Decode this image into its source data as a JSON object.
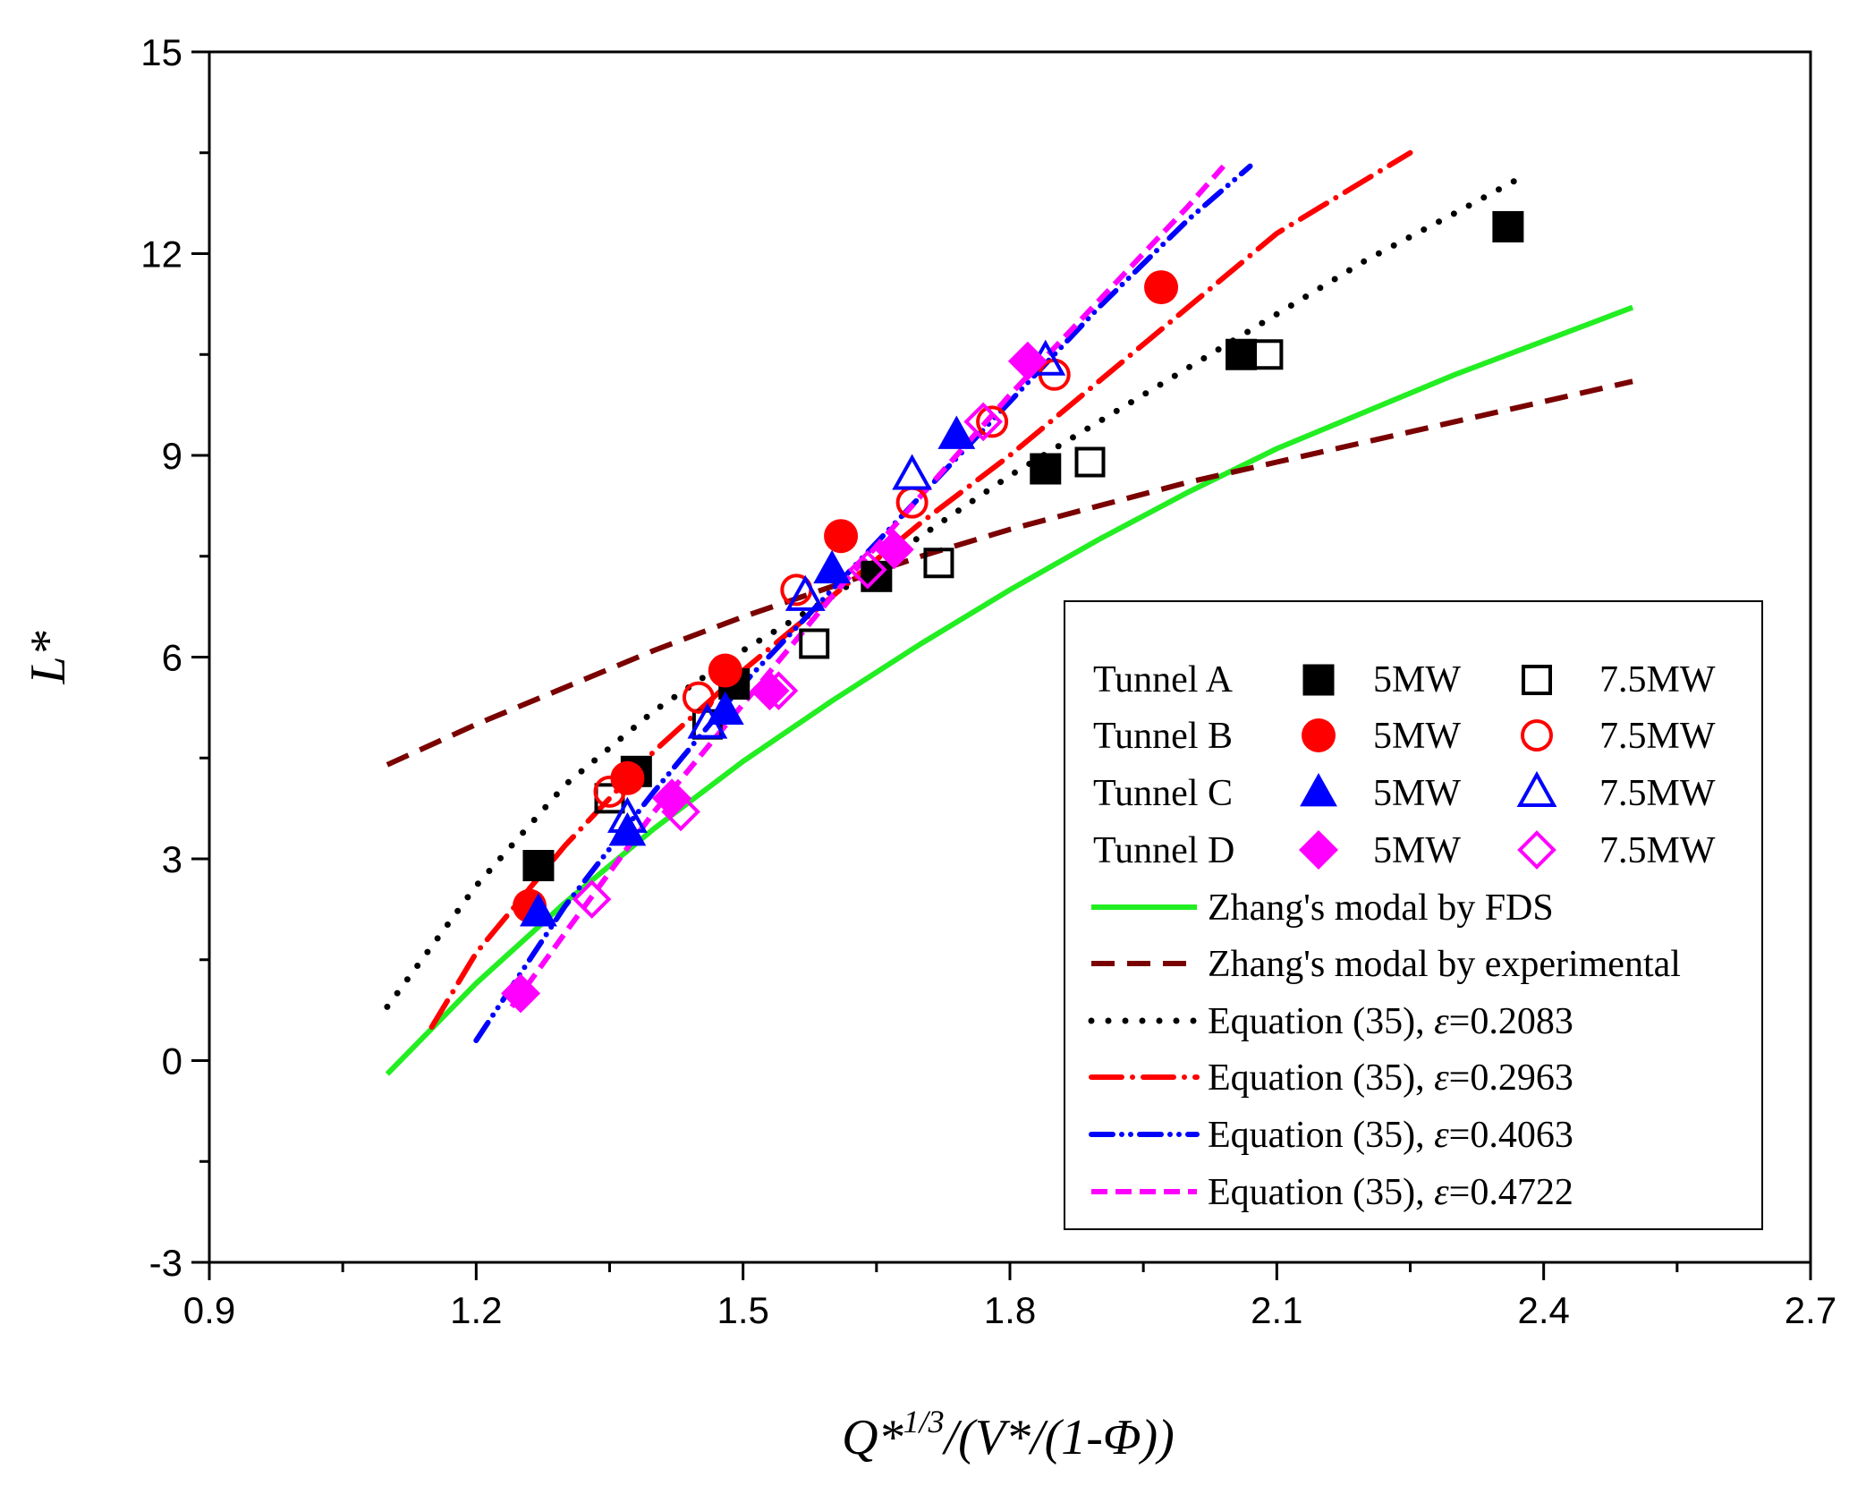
{
  "chart_data": {
    "type": "scatter",
    "title": "",
    "xlabel_parts": [
      "Q*",
      "1/3",
      "/(V*/(1-Φ))"
    ],
    "ylabel": "L*",
    "xlim": [
      0.9,
      2.7
    ],
    "ylim": [
      -3,
      15
    ],
    "x_ticks": [
      0.9,
      1.2,
      1.5,
      1.8,
      2.1,
      2.4,
      2.7
    ],
    "x_tick_labels": [
      "0.9",
      "1.2",
      "1.5",
      "1.8",
      "2.1",
      "2.4",
      "2.7"
    ],
    "y_ticks": [
      -3,
      0,
      3,
      6,
      9,
      12,
      15
    ],
    "y_tick_labels": [
      "-3",
      "0",
      "3",
      "6",
      "9",
      "12",
      "15"
    ],
    "grid": false,
    "legend_position": "bottom-right",
    "legend_rows": [
      {
        "label": "Tunnel A",
        "solid_label": "5MW",
        "open_label": "7.5MW",
        "marker": "square",
        "color": "#000000"
      },
      {
        "label": "Tunnel B",
        "solid_label": "5MW",
        "open_label": "7.5MW",
        "marker": "circle",
        "color": "#ff0000"
      },
      {
        "label": "Tunnel C",
        "solid_label": "5MW",
        "open_label": "7.5MW",
        "marker": "triangle",
        "color": "#0000ff"
      },
      {
        "label": "Tunnel D",
        "solid_label": "5MW",
        "open_label": "7.5MW",
        "marker": "diamond",
        "color": "#ff00ff"
      }
    ],
    "series": [
      {
        "name": "Tunnel A 5MW",
        "marker": "square",
        "filled": true,
        "color": "#000000",
        "points": [
          [
            1.27,
            2.9
          ],
          [
            1.38,
            4.3
          ],
          [
            1.49,
            5.6
          ],
          [
            1.65,
            7.2
          ],
          [
            1.84,
            8.8
          ],
          [
            2.06,
            10.5
          ],
          [
            2.36,
            12.4
          ]
        ]
      },
      {
        "name": "Tunnel A 7.5MW",
        "marker": "square",
        "filled": false,
        "color": "#000000",
        "points": [
          [
            1.35,
            3.9
          ],
          [
            1.46,
            5.0
          ],
          [
            1.58,
            6.2
          ],
          [
            1.72,
            7.4
          ],
          [
            1.89,
            8.9
          ],
          [
            2.09,
            10.5
          ]
        ]
      },
      {
        "name": "Tunnel B 5MW",
        "marker": "circle",
        "filled": true,
        "color": "#ff0000",
        "points": [
          [
            1.26,
            2.3
          ],
          [
            1.37,
            4.2
          ],
          [
            1.48,
            5.8
          ],
          [
            1.61,
            7.8
          ],
          [
            1.97,
            11.5
          ]
        ]
      },
      {
        "name": "Tunnel B 7.5MW",
        "marker": "circle",
        "filled": false,
        "color": "#ff0000",
        "points": [
          [
            1.35,
            4.0
          ],
          [
            1.45,
            5.4
          ],
          [
            1.56,
            7.0
          ],
          [
            1.69,
            8.3
          ],
          [
            1.78,
            9.5
          ],
          [
            1.85,
            10.2
          ]
        ]
      },
      {
        "name": "Tunnel C 5MW",
        "marker": "triangle",
        "filled": true,
        "color": "#0000ff",
        "points": [
          [
            1.27,
            2.2
          ],
          [
            1.37,
            3.4
          ],
          [
            1.48,
            5.2
          ],
          [
            1.6,
            7.3
          ],
          [
            1.74,
            9.3
          ]
        ]
      },
      {
        "name": "Tunnel C 7.5MW",
        "marker": "triangle",
        "filled": false,
        "color": "#0000ff",
        "points": [
          [
            1.37,
            3.6
          ],
          [
            1.46,
            5.0
          ],
          [
            1.57,
            6.9
          ],
          [
            1.69,
            8.7
          ],
          [
            1.84,
            10.4
          ]
        ]
      },
      {
        "name": "Tunnel D 5MW",
        "marker": "diamond",
        "filled": true,
        "color": "#ff00ff",
        "points": [
          [
            1.25,
            1.0
          ],
          [
            1.42,
            3.9
          ],
          [
            1.53,
            5.5
          ],
          [
            1.67,
            7.6
          ],
          [
            1.82,
            10.4
          ]
        ]
      },
      {
        "name": "Tunnel D 7.5MW",
        "marker": "diamond",
        "filled": false,
        "color": "#ff00ff",
        "points": [
          [
            1.33,
            2.4
          ],
          [
            1.43,
            3.7
          ],
          [
            1.54,
            5.5
          ],
          [
            1.64,
            7.3
          ],
          [
            1.77,
            9.5
          ]
        ]
      }
    ],
    "curves": [
      {
        "name": "Zhang's modal by FDS",
        "style": "solid",
        "color": "#22ee22",
        "points": [
          [
            1.1,
            -0.2
          ],
          [
            1.2,
            1.15
          ],
          [
            1.3,
            2.35
          ],
          [
            1.4,
            3.45
          ],
          [
            1.5,
            4.45
          ],
          [
            1.6,
            5.35
          ],
          [
            1.7,
            6.2
          ],
          [
            1.8,
            7.0
          ],
          [
            1.9,
            7.75
          ],
          [
            2.0,
            8.45
          ],
          [
            2.1,
            9.1
          ],
          [
            2.2,
            9.65
          ],
          [
            2.3,
            10.2
          ],
          [
            2.4,
            10.7
          ],
          [
            2.5,
            11.2
          ]
        ]
      },
      {
        "name": "Zhang's modal by experimental",
        "style": "dashed",
        "color": "#7a0000",
        "points": [
          [
            1.1,
            4.4
          ],
          [
            1.2,
            5.0
          ],
          [
            1.3,
            5.55
          ],
          [
            1.4,
            6.1
          ],
          [
            1.5,
            6.6
          ],
          [
            1.6,
            7.05
          ],
          [
            1.7,
            7.5
          ],
          [
            1.8,
            7.9
          ],
          [
            1.9,
            8.25
          ],
          [
            2.0,
            8.6
          ],
          [
            2.1,
            8.9
          ],
          [
            2.2,
            9.2
          ],
          [
            2.3,
            9.5
          ],
          [
            2.4,
            9.8
          ],
          [
            2.5,
            10.1
          ]
        ]
      },
      {
        "name": "Equation (35), ε=0.2083",
        "eq_prefix": "Equation (35), ",
        "eq_symbol": "ε",
        "eq_value": "=0.2083",
        "style": "dotted",
        "color": "#000000",
        "points": [
          [
            1.1,
            0.8
          ],
          [
            1.2,
            2.6
          ],
          [
            1.3,
            4.1
          ],
          [
            1.4,
            5.2
          ],
          [
            1.5,
            6.1
          ],
          [
            1.6,
            6.9
          ],
          [
            1.7,
            7.8
          ],
          [
            1.8,
            8.7
          ],
          [
            1.9,
            9.5
          ],
          [
            2.0,
            10.3
          ],
          [
            2.1,
            11.1
          ],
          [
            2.2,
            11.9
          ],
          [
            2.3,
            12.6
          ],
          [
            2.37,
            13.1
          ]
        ]
      },
      {
        "name": "Equation (35), ε=0.2963",
        "eq_prefix": "Equation (35), ",
        "eq_symbol": "ε",
        "eq_value": "=0.2963",
        "style": "dashdot",
        "color": "#ff0000",
        "points": [
          [
            1.15,
            0.5
          ],
          [
            1.2,
            1.6
          ],
          [
            1.3,
            3.2
          ],
          [
            1.4,
            4.6
          ],
          [
            1.5,
            5.8
          ],
          [
            1.6,
            6.9
          ],
          [
            1.7,
            8.0
          ],
          [
            1.8,
            9.0
          ],
          [
            1.9,
            10.1
          ],
          [
            2.0,
            11.2
          ],
          [
            2.1,
            12.3
          ],
          [
            2.2,
            13.1
          ],
          [
            2.25,
            13.5
          ]
        ]
      },
      {
        "name": "Equation (35), ε=0.4063",
        "eq_prefix": "Equation (35), ",
        "eq_symbol": "ε",
        "eq_value": "=0.4063",
        "style": "dashdotdot",
        "color": "#0000ff",
        "points": [
          [
            1.2,
            0.3
          ],
          [
            1.25,
            1.3
          ],
          [
            1.3,
            2.3
          ],
          [
            1.4,
            4.0
          ],
          [
            1.5,
            5.6
          ],
          [
            1.6,
            7.0
          ],
          [
            1.7,
            8.4
          ],
          [
            1.8,
            9.8
          ],
          [
            1.9,
            11.2
          ],
          [
            2.0,
            12.5
          ],
          [
            2.07,
            13.3
          ]
        ]
      },
      {
        "name": "Equation (35), ε=0.4722",
        "eq_prefix": "Equation (35), ",
        "eq_symbol": "ε",
        "eq_value": "=0.4722",
        "style": "shortdash",
        "color": "#ff00ff",
        "points": [
          [
            1.24,
            0.8
          ],
          [
            1.3,
            1.9
          ],
          [
            1.4,
            3.7
          ],
          [
            1.5,
            5.3
          ],
          [
            1.6,
            6.9
          ],
          [
            1.7,
            8.4
          ],
          [
            1.8,
            9.9
          ],
          [
            1.9,
            11.3
          ],
          [
            2.0,
            12.7
          ],
          [
            2.04,
            13.3
          ]
        ]
      }
    ]
  }
}
